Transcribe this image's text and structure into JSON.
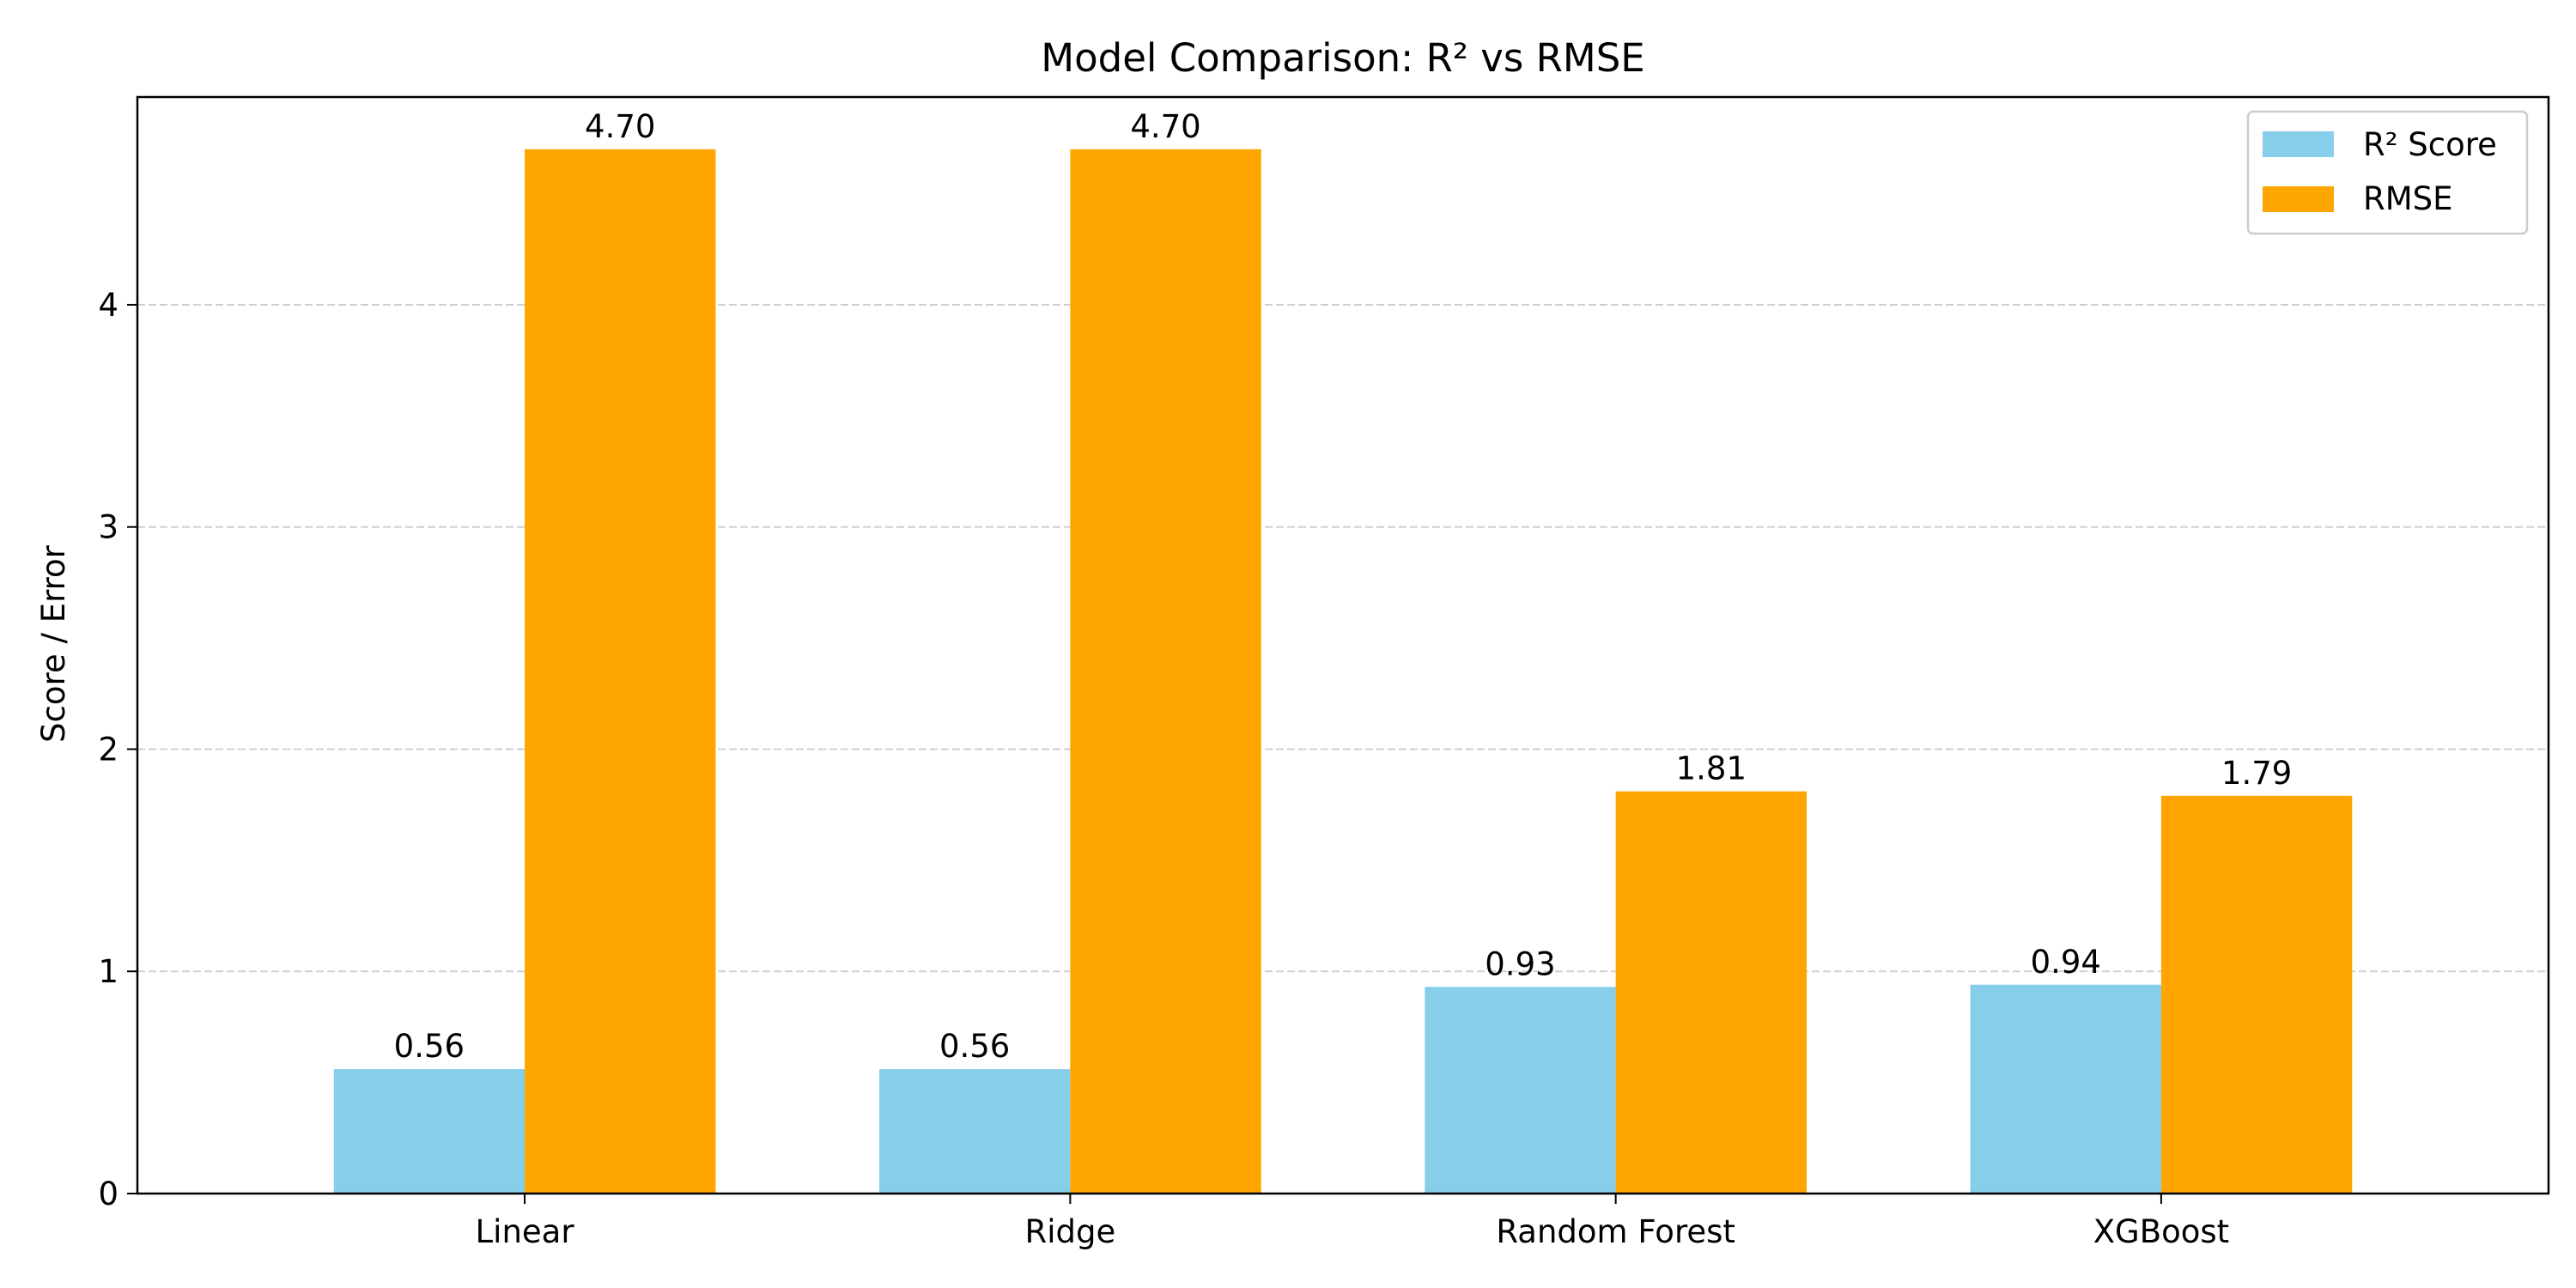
{
  "chart_data": {
    "type": "bar",
    "title": "Model Comparison: R² vs RMSE",
    "xlabel": "",
    "ylabel": "Score / Error",
    "categories": [
      "Linear",
      "Ridge",
      "Random Forest",
      "XGBoost"
    ],
    "series": [
      {
        "name": "R² Score",
        "color": "#87ceeb",
        "values": [
          0.56,
          0.56,
          0.93,
          0.94
        ],
        "labels": [
          "0.56",
          "0.56",
          "0.93",
          "0.94"
        ]
      },
      {
        "name": "RMSE",
        "color": "#ffa500",
        "values": [
          4.7,
          4.7,
          1.81,
          1.79
        ],
        "labels": [
          "4.70",
          "4.70",
          "1.81",
          "1.79"
        ]
      }
    ],
    "ylim": [
      0,
      4.935
    ],
    "yticks": [
      0,
      1,
      2,
      3,
      4
    ],
    "ytick_labels": [
      "0",
      "1",
      "2",
      "3",
      "4"
    ],
    "grid": "y-dashed",
    "legend_position": "top-right"
  }
}
